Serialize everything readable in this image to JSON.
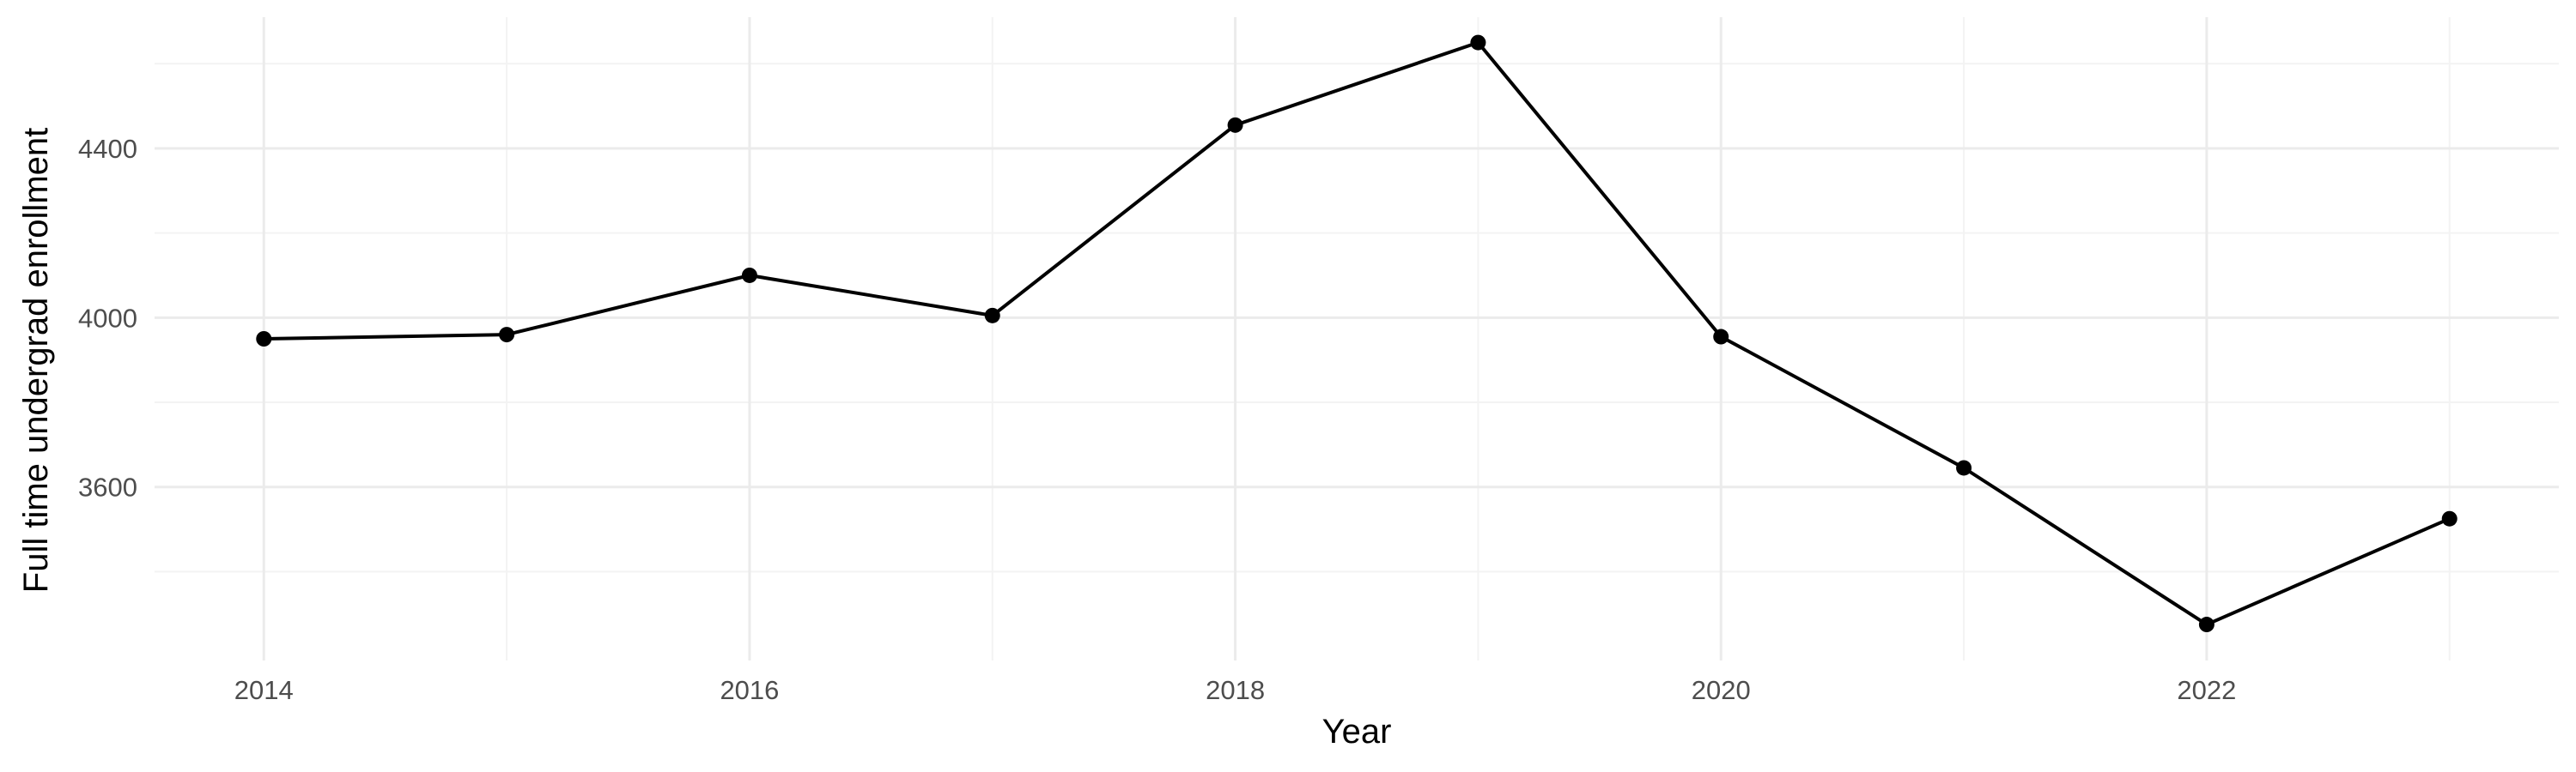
{
  "chart_data": {
    "type": "line",
    "xlabel": "Year",
    "ylabel": "Full time undergrad enrollment",
    "x": [
      2014,
      2015,
      2016,
      2017,
      2018,
      2019,
      2020,
      2021,
      2022,
      2023
    ],
    "series": [
      {
        "values": [
          3950,
          3960,
          4100,
          4005,
          4455,
          4650,
          3955,
          3645,
          3275,
          3525
        ]
      }
    ],
    "x_ticks": [
      2014,
      2016,
      2018,
      2020,
      2022
    ],
    "y_ticks": [
      3600,
      4000,
      4400
    ],
    "xlim": [
      2013.55,
      2023.45
    ],
    "ylim": [
      3190,
      4710
    ],
    "grid": true,
    "legend": "none",
    "colors": {
      "line": "#000000",
      "point": "#000000",
      "grid": "#ebebeb"
    }
  }
}
